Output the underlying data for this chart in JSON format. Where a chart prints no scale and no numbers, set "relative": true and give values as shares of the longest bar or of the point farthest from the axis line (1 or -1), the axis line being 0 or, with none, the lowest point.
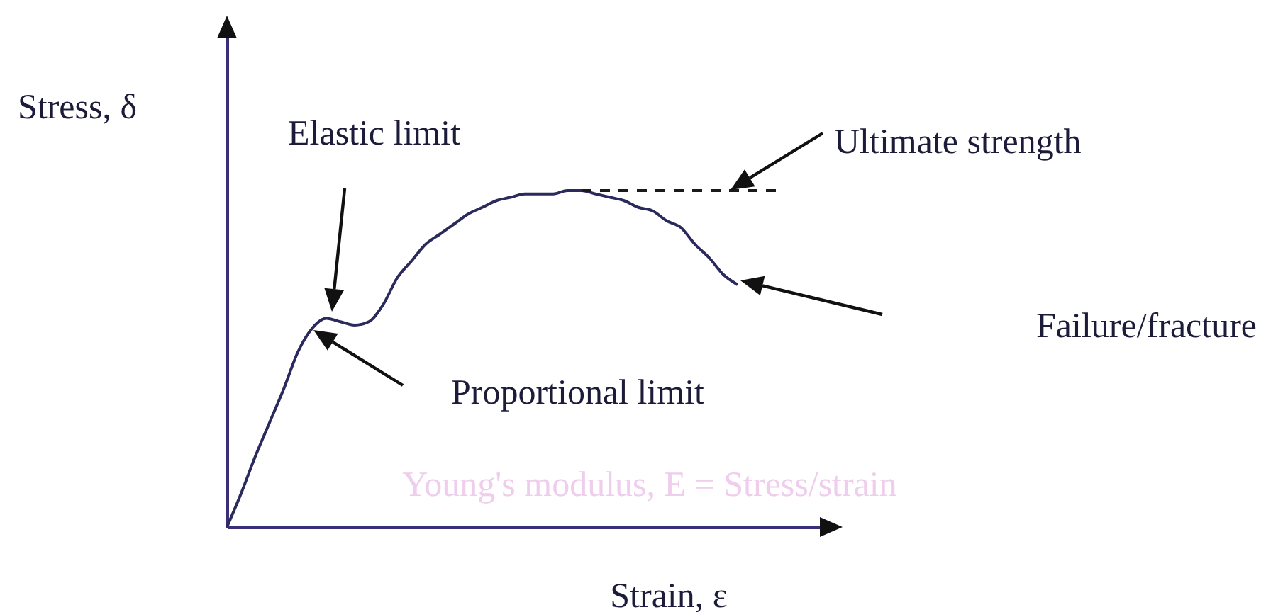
{
  "chart_data": {
    "type": "line",
    "relative": true,
    "xlabel": "Strain, ε",
    "ylabel": "Stress, δ",
    "categories": [
      null,
      null,
      null,
      null,
      null,
      null,
      null,
      null,
      null,
      null,
      null,
      null,
      null,
      null,
      null,
      null,
      null,
      null,
      null,
      null,
      null,
      null,
      null,
      null,
      null,
      null,
      null,
      null,
      null,
      null,
      null,
      null,
      null,
      null,
      null,
      null,
      null,
      null,
      null,
      null,
      null,
      null,
      null,
      null
    ],
    "series": [
      {
        "color": "#2b2a5c",
        "values": [
          0,
          0.1,
          0.21,
          0.31,
          0.41,
          0.52,
          0.59,
          0.62,
          0.61,
          0.6,
          0.61,
          0.66,
          0.74,
          0.79,
          0.84,
          0.87,
          0.9,
          0.93,
          0.95,
          0.97,
          0.98,
          0.99,
          0.99,
          0.99,
          1,
          1,
          0.99,
          0.98,
          0.97,
          0.95,
          0.94,
          0.91,
          0.89,
          0.84,
          0.8,
          0.75,
          0.72,
          null,
          null,
          null,
          null,
          null,
          null,
          null
        ]
      },
      {
        "type": "line",
        "line_style": "dashed",
        "color": "#1a1a1a",
        "values": [
          null,
          null,
          null,
          null,
          null,
          null,
          null,
          null,
          null,
          null,
          null,
          null,
          null,
          null,
          null,
          null,
          null,
          null,
          null,
          null,
          null,
          null,
          null,
          null,
          null,
          1,
          1,
          1,
          1,
          1,
          1,
          1,
          1,
          1,
          1,
          1,
          1,
          1,
          1,
          1,
          null,
          null,
          null,
          null
        ]
      }
    ],
    "annotations": [
      "Elastic limit",
      "Proportional limit",
      "Ultimate strength",
      "Failure/fracture",
      "Young's modulus, E = Stress/strain"
    ]
  }
}
